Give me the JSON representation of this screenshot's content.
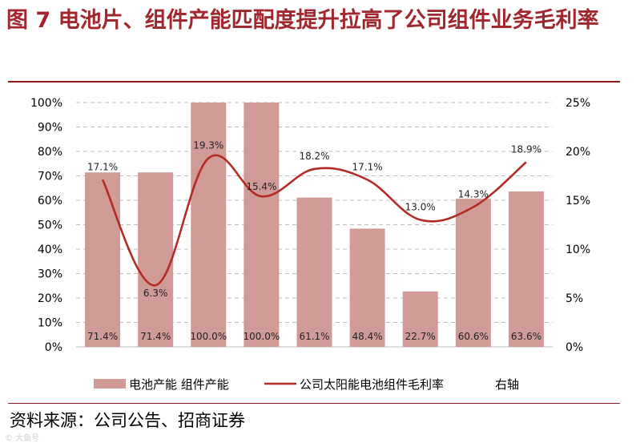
{
  "title": "图 7  电池片、组件产能匹配度提升拉高了公司组件业务毛利率",
  "source": "资料来源：公司公告、招商证券",
  "watermark": "© 大鱼号",
  "chart_data": {
    "type": "bar",
    "categories": [
      "",
      "",
      "",
      "",
      "",
      "",
      "",
      "",
      ""
    ],
    "series": [
      {
        "name": "电池产能 组件产能",
        "kind": "bar",
        "axis": "left",
        "color": "#d09a97",
        "values": [
          71.4,
          71.4,
          100.0,
          100.0,
          61.1,
          48.4,
          22.7,
          60.6,
          63.6
        ],
        "labels": [
          "71.4%",
          "71.4%",
          "100.0%",
          "100.0%",
          "61.1%",
          "48.4%",
          "22.7%",
          "60.6%",
          "63.6%"
        ]
      },
      {
        "name": "公司太阳能电池组件毛利率",
        "kind": "line",
        "axis": "right",
        "color": "#b42a25",
        "values": [
          17.1,
          6.3,
          19.3,
          15.4,
          18.2,
          17.1,
          13.0,
          14.3,
          18.9
        ],
        "labels": [
          "17.1%",
          "6.3%",
          "19.3%",
          "15.4%",
          "18.2%",
          "17.1%",
          "13.0%",
          "14.3%",
          "18.9%"
        ]
      }
    ],
    "y_left": {
      "range": [
        0,
        100
      ],
      "ticks": [
        "0%",
        "10%",
        "20%",
        "30%",
        "40%",
        "50%",
        "60%",
        "70%",
        "80%",
        "90%",
        "100%"
      ]
    },
    "y_right": {
      "range": [
        0,
        25
      ],
      "ticks": [
        "0%",
        "5%",
        "10%",
        "15%",
        "20%",
        "25%"
      ]
    },
    "grid": "dashed",
    "legend": {
      "position": "bottom",
      "bar_label": "电池产能  组件产能",
      "line_label": "公司太阳能电池组件毛利率",
      "axis_note": "右轴"
    }
  }
}
